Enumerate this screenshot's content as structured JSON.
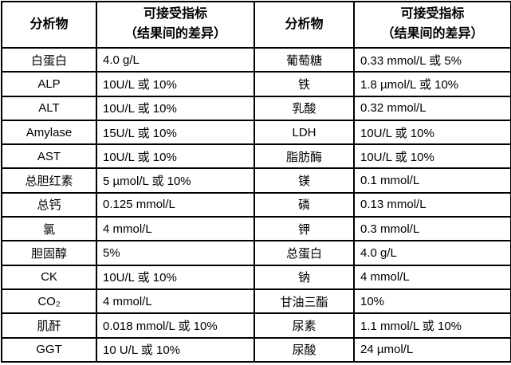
{
  "colors": {
    "border": "#000000",
    "text": "#000000",
    "background": "#ffffff"
  },
  "header": {
    "analyte_label": "分析物",
    "indicator_line1": "可接受指标",
    "indicator_line2": "（结果间的差异）"
  },
  "rows": [
    {
      "left": {
        "analyte": "白蛋白",
        "value": "4.0 g/L"
      },
      "right": {
        "analyte": "葡萄糖",
        "value": "0.33 mmol/L 或 5%"
      }
    },
    {
      "left": {
        "analyte": "ALP",
        "value": "10U/L 或 10%"
      },
      "right": {
        "analyte": "铁",
        "value": "1.8 µmol/L 或 10%"
      }
    },
    {
      "left": {
        "analyte": "ALT",
        "value": "10U/L 或 10%"
      },
      "right": {
        "analyte": "乳酸",
        "value": "0.32 mmol/L"
      }
    },
    {
      "left": {
        "analyte": "Amylase",
        "value": "15U/L 或 10%"
      },
      "right": {
        "analyte": "LDH",
        "value": "10U/L 或 10%"
      }
    },
    {
      "left": {
        "analyte": "AST",
        "value": "10U/L 或 10%"
      },
      "right": {
        "analyte": "脂肪酶",
        "value": "10U/L 或 10%"
      }
    },
    {
      "left": {
        "analyte": "总胆红素",
        "value": "5 µmol/L 或 10%"
      },
      "right": {
        "analyte": "镁",
        "value": "0.1 mmol/L"
      }
    },
    {
      "left": {
        "analyte": "总钙",
        "value": "0.125 mmol/L"
      },
      "right": {
        "analyte": "磷",
        "value": "0.13 mmol/L"
      }
    },
    {
      "left": {
        "analyte": "氯",
        "value": "4 mmol/L"
      },
      "right": {
        "analyte": "钾",
        "value": "0.3 mmol/L"
      }
    },
    {
      "left": {
        "analyte": "胆固醇",
        "value": "5%"
      },
      "right": {
        "analyte": "总蛋白",
        "value": "4.0 g/L"
      }
    },
    {
      "left": {
        "analyte": "CK",
        "value": "10U/L 或 10%"
      },
      "right": {
        "analyte": "钠",
        "value": "4 mmol/L"
      }
    },
    {
      "left": {
        "analyte": "CO₂",
        "value": "4 mmol/L"
      },
      "right": {
        "analyte": "甘油三酯",
        "value": "10%"
      }
    },
    {
      "left": {
        "analyte": "肌酐",
        "value": "0.018 mmol/L 或 10%"
      },
      "right": {
        "analyte": "尿素",
        "value": "1.1 mmol/L 或 10%"
      }
    },
    {
      "left": {
        "analyte": "GGT",
        "value": "10 U/L 或 10%"
      },
      "right": {
        "analyte": "尿酸",
        "value": "24 µmol/L"
      }
    }
  ]
}
